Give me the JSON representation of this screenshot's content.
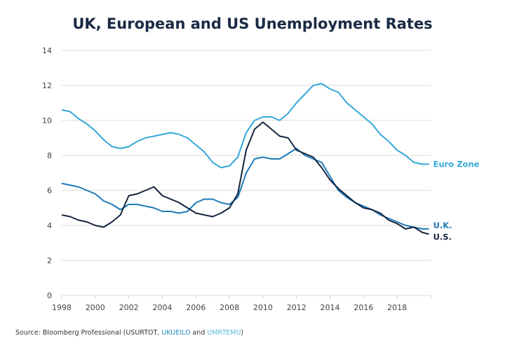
{
  "chart_data": {
    "type": "line",
    "title": "UK, European and US Unemployment Rates",
    "xlabel": "",
    "ylabel": "",
    "xlim": [
      1998,
      2020
    ],
    "ylim": [
      0,
      14
    ],
    "x_ticks": [
      1998,
      2000,
      2002,
      2004,
      2006,
      2008,
      2010,
      2012,
      2014,
      2016,
      2018
    ],
    "y_ticks": [
      0,
      2,
      4,
      6,
      8,
      10,
      12,
      14
    ],
    "grid": "horizontal",
    "legend": "inline-right",
    "series": [
      {
        "name": "Euro Zone",
        "color": "#36a8d8",
        "x": [
          1998,
          1998.5,
          1999,
          1999.5,
          2000,
          2000.5,
          2001,
          2001.5,
          2002,
          2002.5,
          2003,
          2003.5,
          2004,
          2004.5,
          2005,
          2005.5,
          2006,
          2006.5,
          2007,
          2007.5,
          2008,
          2008.5,
          2009,
          2009.5,
          2010,
          2010.5,
          2011,
          2011.5,
          2012,
          2012.5,
          2013,
          2013.5,
          2014,
          2014.5,
          2015,
          2015.5,
          2016,
          2016.5,
          2017,
          2017.5,
          2018,
          2018.5,
          2019,
          2019.5,
          2019.9
        ],
        "values": [
          10.6,
          10.5,
          10.1,
          9.8,
          9.4,
          8.9,
          8.5,
          8.4,
          8.5,
          8.8,
          9.0,
          9.1,
          9.2,
          9.3,
          9.2,
          9.0,
          8.6,
          8.2,
          7.6,
          7.3,
          7.4,
          7.9,
          9.3,
          10.0,
          10.2,
          10.2,
          10.0,
          10.4,
          11.0,
          11.5,
          12.0,
          12.1,
          11.8,
          11.6,
          11.0,
          10.6,
          10.2,
          9.8,
          9.2,
          8.8,
          8.3,
          8.0,
          7.6,
          7.5,
          7.5
        ]
      },
      {
        "name": "U.K.",
        "color": "#1e7bb8",
        "x": [
          1998,
          1998.5,
          1999,
          1999.5,
          2000,
          2000.5,
          2001,
          2001.5,
          2002,
          2002.5,
          2003,
          2003.5,
          2004,
          2004.5,
          2005,
          2005.5,
          2006,
          2006.5,
          2007,
          2007.5,
          2008,
          2008.5,
          2009,
          2009.5,
          2010,
          2010.5,
          2011,
          2011.5,
          2012,
          2012.5,
          2013,
          2013.5,
          2014,
          2014.5,
          2015,
          2015.5,
          2016,
          2016.5,
          2017,
          2017.5,
          2018,
          2018.5,
          2019,
          2019.5,
          2019.9
        ],
        "values": [
          6.4,
          6.3,
          6.2,
          6.0,
          5.8,
          5.4,
          5.2,
          4.9,
          5.2,
          5.2,
          5.1,
          5.0,
          4.8,
          4.8,
          4.7,
          4.8,
          5.3,
          5.5,
          5.5,
          5.3,
          5.2,
          5.6,
          7.0,
          7.8,
          7.9,
          7.8,
          7.8,
          8.1,
          8.4,
          8.0,
          7.8,
          7.6,
          6.8,
          6.0,
          5.6,
          5.3,
          5.1,
          4.9,
          4.6,
          4.4,
          4.2,
          4.0,
          3.9,
          3.8,
          3.8
        ]
      },
      {
        "name": "U.S.",
        "color": "#15253f",
        "x": [
          1998,
          1998.5,
          1999,
          1999.5,
          2000,
          2000.5,
          2001,
          2001.5,
          2002,
          2002.5,
          2003,
          2003.5,
          2004,
          2004.5,
          2005,
          2005.5,
          2006,
          2006.5,
          2007,
          2007.5,
          2008,
          2008.5,
          2009,
          2009.5,
          2010,
          2010.5,
          2011,
          2011.5,
          2012,
          2012.5,
          2013,
          2013.5,
          2014,
          2014.5,
          2015,
          2015.5,
          2016,
          2016.5,
          2017,
          2017.5,
          2018,
          2018.5,
          2019,
          2019.5,
          2019.9
        ],
        "values": [
          4.6,
          4.5,
          4.3,
          4.2,
          4.0,
          3.9,
          4.2,
          4.6,
          5.7,
          5.8,
          6.0,
          6.2,
          5.7,
          5.5,
          5.3,
          5.0,
          4.7,
          4.6,
          4.5,
          4.7,
          5.0,
          5.8,
          8.3,
          9.5,
          9.9,
          9.5,
          9.1,
          9.0,
          8.3,
          8.1,
          7.9,
          7.3,
          6.6,
          6.1,
          5.7,
          5.3,
          5.0,
          4.9,
          4.7,
          4.3,
          4.1,
          3.8,
          3.9,
          3.6,
          3.5
        ]
      }
    ]
  },
  "source": {
    "prefix": "Source: Bloomberg Professional (USURTOT, ",
    "uk_code": "UKUEILO",
    "mid": " and ",
    "eu_code": "UMRTEMU",
    "suffix": ")"
  }
}
